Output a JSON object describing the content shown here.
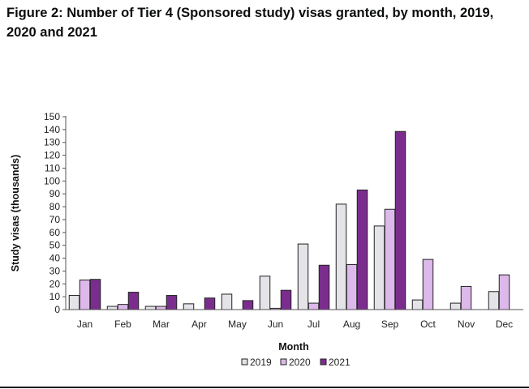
{
  "chart_data": {
    "type": "bar",
    "title": "Figure 2: Number of Tier 4 (Sponsored study) visas granted, by month, 2019, 2020 and 2021",
    "xlabel": "Month",
    "ylabel": "Study visas (thousands)",
    "ylim": [
      0,
      150
    ],
    "ytick_step": 10,
    "grid": false,
    "legend": "bottom-center",
    "categories": [
      "Jan",
      "Feb",
      "Mar",
      "Apr",
      "May",
      "Jun",
      "Jul",
      "Aug",
      "Sep",
      "Oct",
      "Nov",
      "Dec"
    ],
    "series": [
      {
        "name": "2019",
        "color": "#e3e3e8",
        "values": [
          11,
          2.5,
          2.5,
          4.5,
          12,
          26,
          51,
          82,
          65,
          7.5,
          5,
          14
        ]
      },
      {
        "name": "2020",
        "color": "#ddb8ea",
        "values": [
          23,
          4,
          2.5,
          0,
          0,
          1,
          5,
          35,
          78,
          39,
          18,
          27
        ]
      },
      {
        "name": "2021",
        "color": "#7b2d8e",
        "values": [
          23.5,
          13.5,
          11,
          9,
          7,
          15,
          34.5,
          93,
          138.5,
          0,
          0,
          0
        ]
      }
    ]
  }
}
